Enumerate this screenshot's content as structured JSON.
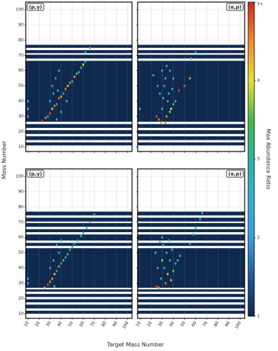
{
  "chart_data": {
    "type": "heatmap",
    "x_label": "Target Mass Number",
    "y_label": "Mass Number",
    "xlim": [
      8,
      104
    ],
    "ylim": [
      7,
      105
    ],
    "xticks": [
      10,
      20,
      30,
      40,
      50,
      60,
      70,
      80,
      90,
      100
    ],
    "yticks": [
      10,
      20,
      30,
      40,
      50,
      60,
      70,
      80,
      90,
      100
    ],
    "grid": true,
    "colorbar": {
      "label": "Max Abundance Ratio",
      "lim": [
        1,
        5
      ],
      "ticks": [
        1,
        2,
        3,
        4,
        {
          "value": 5,
          "label": "5+"
        }
      ],
      "colors": [
        "#10294f",
        "#1d58a0",
        "#3b9ee0",
        "#34b1cf",
        "#2fb3a8",
        "#47b84a",
        "#e6e03a",
        "#ef8a2c",
        "#d22a1f"
      ]
    },
    "panels": [
      {
        "title": "(p,γ)",
        "bands": [
          [
            11,
            13
          ],
          [
            14.5,
            17
          ],
          [
            18.5,
            21
          ],
          [
            22.5,
            25
          ],
          [
            26.5,
            66.5
          ],
          [
            68,
            70.5
          ],
          [
            71.5,
            73.5
          ],
          [
            75,
            77
          ]
        ],
        "x": [
          10,
          10,
          10,
          23,
          26,
          28,
          30,
          32,
          34,
          36,
          38,
          40,
          42,
          44,
          46,
          48,
          50,
          52,
          54,
          56,
          58,
          60,
          62,
          33,
          35,
          38,
          36,
          40,
          32,
          45,
          62,
          66,
          30,
          37
        ],
        "y": [
          30,
          35,
          40,
          27,
          29,
          30,
          32,
          35,
          37,
          38,
          42,
          43,
          45,
          48,
          50,
          52,
          53,
          56,
          58,
          59,
          62,
          64,
          66,
          45,
          55,
          60,
          28,
          33,
          50,
          40,
          72,
          75,
          40,
          47
        ],
        "values": [
          2.2,
          2.5,
          2,
          4.8,
          4.5,
          3.5,
          4.8,
          4.2,
          4.6,
          3,
          4.7,
          4.3,
          3.2,
          4.5,
          3.8,
          4.6,
          3.3,
          4.4,
          3.6,
          2.8,
          3.5,
          4,
          3,
          2.5,
          2.3,
          2.4,
          2.6,
          2.2,
          2.6,
          2.3,
          2.4,
          2.2,
          2.1,
          2.7
        ]
      },
      {
        "title": "(α,p)",
        "bands": [
          [
            11,
            13
          ],
          [
            14.5,
            17
          ],
          [
            18.5,
            21
          ],
          [
            22.5,
            25
          ],
          [
            26.5,
            66.5
          ],
          [
            68,
            70.5
          ],
          [
            71.5,
            73.5
          ],
          [
            75,
            77
          ]
        ],
        "x": [
          10,
          22,
          25,
          27,
          29,
          30,
          31,
          32,
          33,
          34,
          35,
          36,
          37,
          38,
          39,
          40,
          30,
          28,
          45,
          50,
          55,
          34,
          56,
          60,
          26,
          40,
          33,
          37,
          42
        ],
        "y": [
          35,
          57,
          30,
          28,
          26,
          35,
          42,
          50,
          55,
          30,
          40,
          45,
          60,
          35,
          48,
          38,
          60,
          45,
          47,
          50,
          55,
          63,
          68,
          72,
          50,
          55,
          26,
          33,
          40
        ],
        "values": [
          2,
          2.5,
          4.8,
          4.6,
          4.3,
          2.8,
          3,
          2.6,
          2.5,
          4.5,
          3.2,
          2.7,
          2.4,
          4,
          2.6,
          3.5,
          2.5,
          2.3,
          4.8,
          4.7,
          4.4,
          2.6,
          2.3,
          2.2,
          2.4,
          2.3,
          4.5,
          3.8,
          3.3
        ]
      },
      {
        "title": "(p,γ)",
        "bands": [
          [
            10,
            12
          ],
          [
            13.5,
            16
          ],
          [
            17.5,
            19.5
          ],
          [
            21,
            23
          ],
          [
            24.5,
            26
          ],
          [
            27,
            53
          ],
          [
            54.5,
            56.5
          ],
          [
            58,
            62
          ],
          [
            63.5,
            65.5
          ],
          [
            67,
            69.5
          ],
          [
            70.5,
            73
          ],
          [
            74.5,
            77
          ]
        ],
        "x": [
          10,
          10,
          25,
          28,
          30,
          32,
          34,
          36,
          38,
          40,
          42,
          44,
          46,
          48,
          50,
          52,
          55,
          58,
          60,
          63,
          66,
          70,
          33,
          36,
          38,
          40,
          34,
          30
        ],
        "y": [
          30,
          33,
          27,
          29,
          31,
          33,
          36,
          38,
          41,
          43,
          45,
          47,
          49,
          52,
          54,
          56,
          58,
          61,
          63,
          66,
          70,
          75,
          45,
          55,
          50,
          58,
          28,
          40
        ],
        "values": [
          2.2,
          2.6,
          4.2,
          4.8,
          4.6,
          4.4,
          4.2,
          3.5,
          4.5,
          3.2,
          3.6,
          3,
          3.4,
          3.2,
          2.8,
          3,
          2.7,
          3.3,
          2.6,
          2.8,
          2.4,
          2.3,
          2.4,
          2.2,
          2.6,
          2.3,
          2.5,
          2.1
        ]
      },
      {
        "title": "(α,p)",
        "bands": [
          [
            10,
            12
          ],
          [
            13.5,
            16
          ],
          [
            17.5,
            19.5
          ],
          [
            21,
            23
          ],
          [
            24.5,
            26
          ],
          [
            27,
            53
          ],
          [
            54.5,
            56.5
          ],
          [
            58,
            62
          ],
          [
            63.5,
            65.5
          ],
          [
            67,
            69.5
          ],
          [
            70.5,
            73
          ],
          [
            74.5,
            77
          ]
        ],
        "x": [
          25,
          27,
          29,
          30,
          31,
          32,
          33,
          34,
          35,
          36,
          37,
          38,
          39,
          40,
          28,
          26,
          30,
          24,
          55,
          58,
          60,
          64,
          66,
          42,
          44,
          46
        ],
        "y": [
          28,
          27,
          33,
          45,
          55,
          40,
          30,
          50,
          36,
          58,
          45,
          32,
          52,
          38,
          57,
          40,
          60,
          50,
          56,
          62,
          66,
          72,
          76,
          43,
          45,
          48
        ],
        "values": [
          4.8,
          4.4,
          3.5,
          3.8,
          3.2,
          2.8,
          4.6,
          2.7,
          4.2,
          2.5,
          2.6,
          4.3,
          2.5,
          3.6,
          3,
          2.5,
          2.6,
          2.4,
          2.6,
          2.3,
          2.4,
          2.2,
          2.3,
          3,
          2.8,
          2.5
        ]
      }
    ]
  }
}
